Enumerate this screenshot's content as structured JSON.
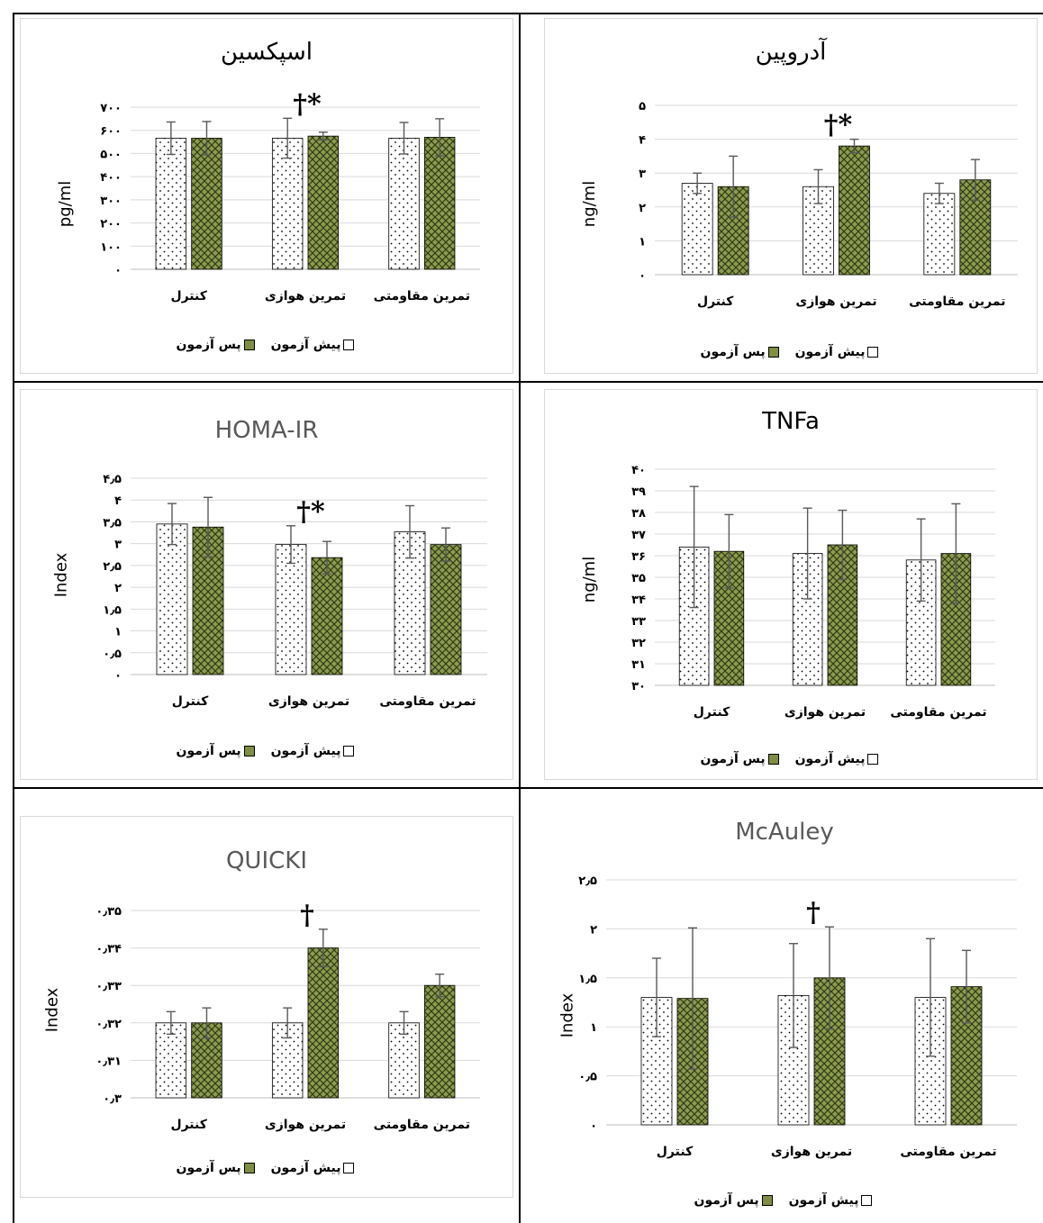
{
  "legend": {
    "pre": "پیش آزمون",
    "post": "پس آزمون"
  },
  "colors": {
    "post_fill": "#8c9b4f",
    "post_hatch": "#2f3a14",
    "pre_fill": "#ffffff",
    "grid": "#d9d9d9",
    "error_bar": "#595959"
  },
  "chart_data": [
    {
      "type": "bar",
      "title": "اسپکسین",
      "ylabel": "pg/ml",
      "ylim": [
        0,
        700
      ],
      "yticks": [
        "۰",
        "۱۰۰",
        "۲۰۰",
        "۳۰۰",
        "۴۰۰",
        "۵۰۰",
        "۶۰۰",
        "۷۰۰"
      ],
      "categories": [
        "کنترل",
        "تمرین هوازی",
        "تمرین مقاومتی"
      ],
      "series": [
        {
          "name": "پیش آزمون",
          "values": [
            566,
            566,
            566
          ],
          "errors": [
            70,
            86,
            68
          ]
        },
        {
          "name": "پس آزمون",
          "values": [
            566,
            575,
            570
          ],
          "errors": [
            72,
            17,
            80
          ]
        }
      ],
      "annotations": [
        {
          "category": "تمرین هوازی",
          "text": "†*"
        }
      ]
    },
    {
      "type": "bar",
      "title": "آدروپین",
      "ylabel": "ng/ml",
      "ylim": [
        0,
        5
      ],
      "yticks": [
        "۰",
        "۱",
        "۲",
        "۳",
        "۴",
        "۵"
      ],
      "categories": [
        "کنترل",
        "تمرین هوازی",
        "تمرین مقاومتی"
      ],
      "series": [
        {
          "name": "پیش آزمون",
          "values": [
            2.7,
            2.6,
            2.4
          ],
          "errors": [
            0.3,
            0.5,
            0.3
          ]
        },
        {
          "name": "پس آزمون",
          "values": [
            2.6,
            3.8,
            2.8
          ],
          "errors": [
            0.9,
            0.2,
            0.6
          ]
        }
      ],
      "annotations": [
        {
          "category": "تمرین هوازی",
          "text": "†*"
        }
      ]
    },
    {
      "type": "bar",
      "title": "HOMA-IR",
      "ylabel": "Index",
      "ylim": [
        0,
        4.5
      ],
      "yticks": [
        "۰",
        "۰٫۵",
        "۱",
        "۱٫۵",
        "۲",
        "۲٫۵",
        "۳",
        "۳٫۵",
        "۴",
        "۴٫۵"
      ],
      "categories": [
        "کنترل",
        "تمرین هوازی",
        "تمرین مقاومتی"
      ],
      "series": [
        {
          "name": "پیش آزمون",
          "values": [
            3.45,
            2.98,
            3.27
          ],
          "errors": [
            0.47,
            0.43,
            0.6
          ]
        },
        {
          "name": "پس آزمون",
          "values": [
            3.38,
            2.68,
            2.98
          ],
          "errors": [
            0.68,
            0.37,
            0.38
          ]
        }
      ],
      "annotations": [
        {
          "category": "تمرین هوازی",
          "text": "†*"
        }
      ]
    },
    {
      "type": "bar",
      "title": "TNFa",
      "ylabel": "ng/ml",
      "ylim": [
        30,
        40
      ],
      "yticks": [
        "۳۰",
        "۳۱",
        "۳۲",
        "۳۳",
        "۳۴",
        "۳۵",
        "۳۶",
        "۳۷",
        "۳۸",
        "۳۹",
        "۴۰"
      ],
      "categories": [
        "کنترل",
        "تمرین هوازی",
        "تمرین مقاومتی"
      ],
      "series": [
        {
          "name": "پیش آزمون",
          "values": [
            36.4,
            36.1,
            35.8
          ],
          "errors": [
            2.8,
            2.1,
            1.9
          ]
        },
        {
          "name": "پس آزمون",
          "values": [
            36.2,
            36.5,
            36.1
          ],
          "errors": [
            1.7,
            1.6,
            2.3
          ]
        }
      ],
      "annotations": []
    },
    {
      "type": "bar",
      "title": "QUICKI",
      "ylabel": "Index",
      "ylim": [
        0.3,
        0.35
      ],
      "yticks": [
        "۰٫۳",
        "۰٫۳۱",
        "۰٫۳۲",
        "۰٫۳۳",
        "۰٫۳۴",
        "۰٫۳۵"
      ],
      "categories": [
        "کنترل",
        "تمرین هوازی",
        "تمرین مقاومتی"
      ],
      "series": [
        {
          "name": "پیش آزمون",
          "values": [
            0.32,
            0.32,
            0.32
          ],
          "errors": [
            0.003,
            0.004,
            0.003
          ]
        },
        {
          "name": "پس آزمون",
          "values": [
            0.32,
            0.34,
            0.33
          ],
          "errors": [
            0.004,
            0.005,
            0.003
          ]
        }
      ],
      "annotations": [
        {
          "category": "تمرین هوازی",
          "text": "†"
        }
      ]
    },
    {
      "type": "bar",
      "title": "McAuley",
      "ylabel": "Index",
      "ylim": [
        0,
        2.5
      ],
      "yticks": [
        "۰",
        "۰٫۵",
        "۱",
        "۱٫۵",
        "۲",
        "۲٫۵"
      ],
      "categories": [
        "کنترل",
        "تمرین هوازی",
        "تمرین مقاومتی"
      ],
      "series": [
        {
          "name": "پیش آزمون",
          "values": [
            1.3,
            1.32,
            1.3
          ],
          "errors": [
            0.4,
            0.53,
            0.6
          ]
        },
        {
          "name": "پس آزمون",
          "values": [
            1.29,
            1.5,
            1.41
          ],
          "errors": [
            0.72,
            0.52,
            0.37
          ]
        }
      ],
      "annotations": [
        {
          "category": "تمرین هوازی",
          "text": "†"
        }
      ]
    }
  ]
}
